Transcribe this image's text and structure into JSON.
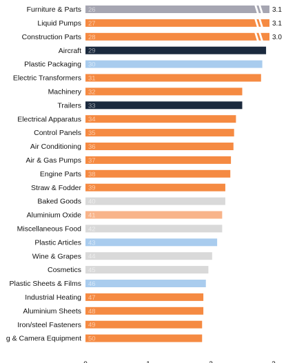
{
  "colors": {
    "orange": "#F58A42",
    "navy": "#1B2A3E",
    "lightblue": "#A9CCEE",
    "lightgray": "#D9D9D9",
    "gray": "#A6A6B2",
    "peach": "#F8B48A",
    "text": "#111111"
  },
  "chart_data": {
    "type": "bar",
    "orientation": "horizontal",
    "xlim": [
      0,
      3
    ],
    "x_ticks": [
      "0",
      "1",
      "2",
      "3"
    ],
    "axis_break_at": 3,
    "grid": false,
    "legend": "none",
    "categories": [
      "Furniture & Parts",
      "Liquid Pumps",
      "Construction Parts",
      "Aircraft",
      "Plastic Packaging",
      "Electric Transformers",
      "Machinery",
      "Trailers",
      "Electrical Apparatus",
      "Control Panels",
      "Air Conditioning",
      "Air & Gas Pumps",
      "Engine Parts",
      "Straw & Fodder",
      "Baked Goods",
      "Aluminium Oxide",
      "Miscellaneous Food",
      "Plastic Articles",
      "Wine & Grapes",
      "Cosmetics",
      "Plastic Sheets & Films",
      "Industrial Heating",
      "Aluminium Sheets",
      "Iron/steel Fasteners",
      "g & Camera Equipment"
    ],
    "ranks": [
      "26",
      "27",
      "28",
      "29",
      "30",
      "31",
      "32",
      "33",
      "34",
      "35",
      "36",
      "37",
      "38",
      "39",
      "40",
      "41",
      "42",
      "43",
      "44",
      "45",
      "46",
      "47",
      "48",
      "49",
      "50"
    ],
    "values": [
      3.1,
      3.1,
      3.0,
      2.88,
      2.82,
      2.8,
      2.5,
      2.5,
      2.4,
      2.37,
      2.36,
      2.32,
      2.31,
      2.23,
      2.23,
      2.18,
      2.18,
      2.1,
      2.02,
      1.96,
      1.92,
      1.88,
      1.88,
      1.86,
      1.86
    ],
    "value_labels": [
      "3.1",
      "3.1",
      "3.0",
      "",
      "",
      "",
      "",
      "",
      "",
      "",
      "",
      "",
      "",
      "",
      "",
      "",
      "",
      "",
      "",
      "",
      "",
      "",
      "",
      "",
      ""
    ],
    "bar_colors": [
      "gray",
      "orange",
      "orange",
      "navy",
      "lightblue",
      "orange",
      "orange",
      "navy",
      "orange",
      "orange",
      "orange",
      "orange",
      "orange",
      "orange",
      "lightgray",
      "peach",
      "lightgray",
      "lightblue",
      "lightgray",
      "lightgray",
      "lightblue",
      "orange",
      "orange",
      "orange",
      "orange"
    ]
  }
}
